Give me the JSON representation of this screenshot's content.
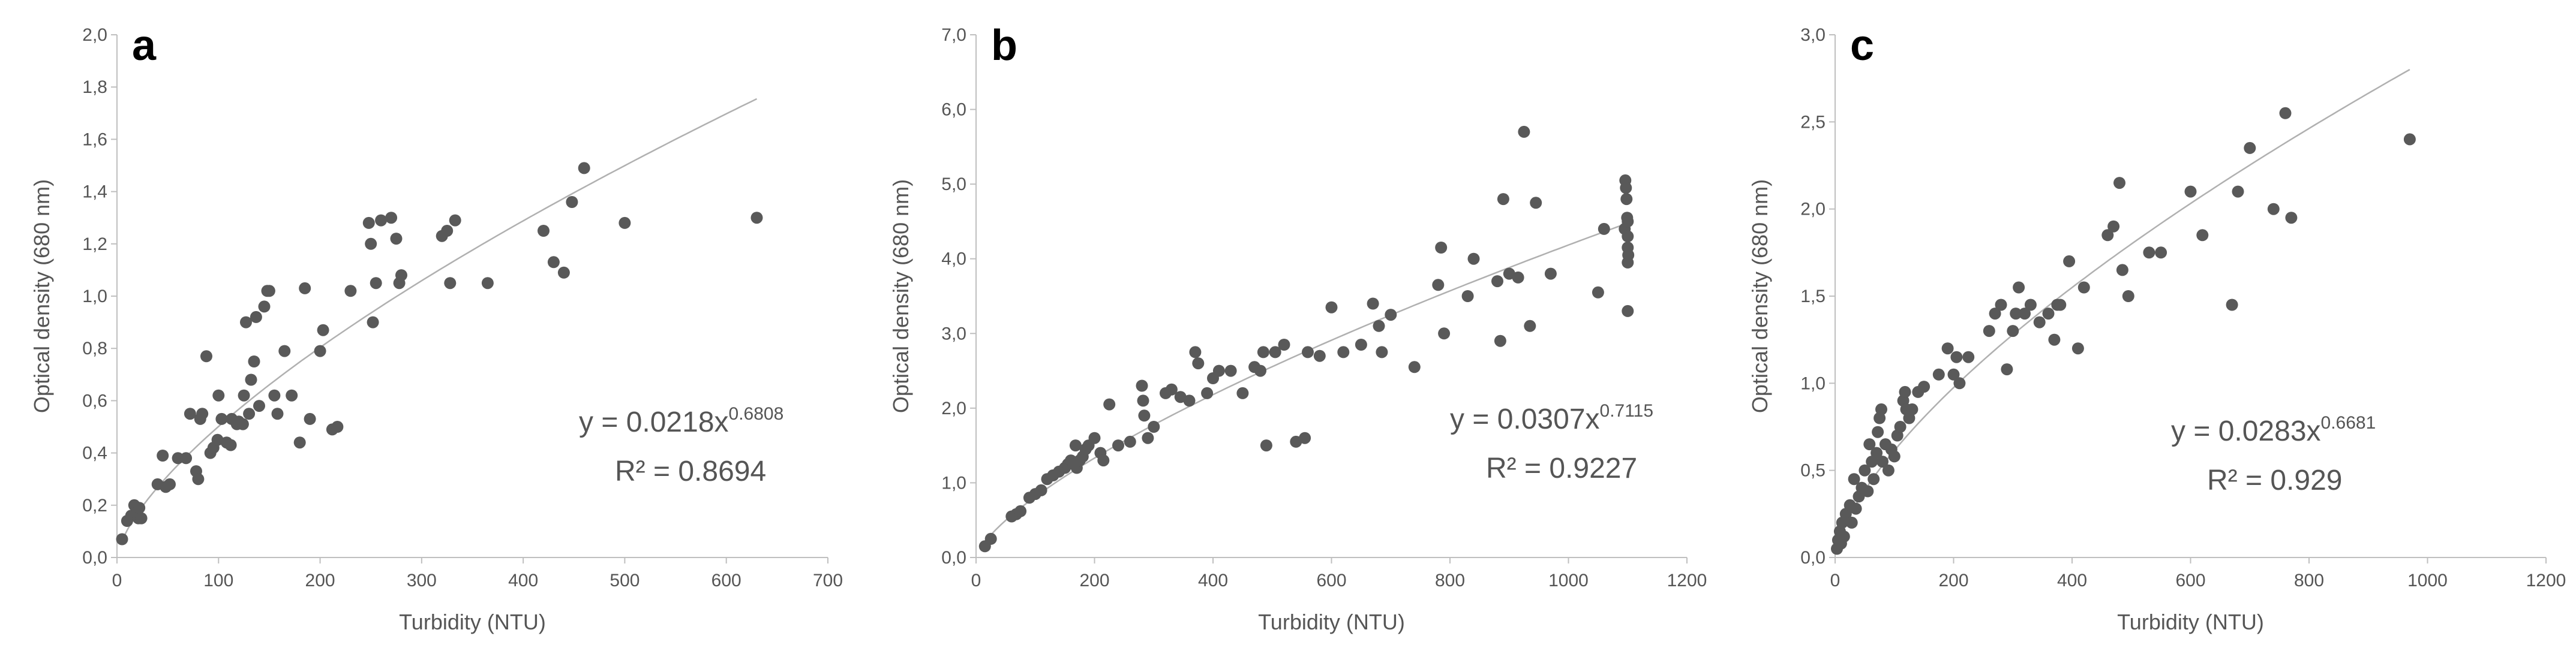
{
  "chart_data": [
    {
      "type": "scatter",
      "panel_label": "a",
      "xlabel": "Turbidity (NTU)",
      "ylabel": "Optical density (680 nm)",
      "xlim": [
        0,
        700
      ],
      "ylim": [
        0,
        2.0
      ],
      "x_ticks": [
        0,
        100,
        200,
        300,
        400,
        500,
        600,
        700
      ],
      "y_ticks": [
        0,
        0.2,
        0.4,
        0.6,
        0.8,
        1.0,
        1.2,
        1.4,
        1.6,
        1.8,
        2.0
      ],
      "x_tick_labels": [
        "0",
        "100",
        "200",
        "300",
        "400",
        "500",
        "600",
        "700"
      ],
      "y_tick_labels": [
        "0,0",
        "0,2",
        "0,4",
        "0,6",
        "0,8",
        "1,0",
        "1,2",
        "1,4",
        "1,6",
        "1,8",
        "2,0"
      ],
      "point_color": "#595959",
      "trend_color": "#b0b0b0",
      "trendline": {
        "type": "power",
        "a": 0.0218,
        "b": 0.6808,
        "x_range": [
          5,
          630
        ]
      },
      "equation": {
        "prefix": "y = 0.0218x",
        "exponent": "0.6808",
        "r2": "R² = 0.8694"
      },
      "points": [
        [
          5,
          0.07
        ],
        [
          10,
          0.14
        ],
        [
          14,
          0.16
        ],
        [
          17,
          0.2
        ],
        [
          19,
          0.17
        ],
        [
          21,
          0.15
        ],
        [
          22,
          0.19
        ],
        [
          24,
          0.15
        ],
        [
          40,
          0.28
        ],
        [
          45,
          0.39
        ],
        [
          48,
          0.27
        ],
        [
          52,
          0.28
        ],
        [
          60,
          0.38
        ],
        [
          68,
          0.38
        ],
        [
          72,
          0.55
        ],
        [
          78,
          0.33
        ],
        [
          80,
          0.3
        ],
        [
          82,
          0.53
        ],
        [
          84,
          0.55
        ],
        [
          88,
          0.77
        ],
        [
          92,
          0.4
        ],
        [
          95,
          0.42
        ],
        [
          99,
          0.45
        ],
        [
          100,
          0.62
        ],
        [
          103,
          0.53
        ],
        [
          108,
          0.44
        ],
        [
          112,
          0.43
        ],
        [
          113,
          0.53
        ],
        [
          118,
          0.51
        ],
        [
          120,
          0.52
        ],
        [
          124,
          0.51
        ],
        [
          125,
          0.62
        ],
        [
          127,
          0.9
        ],
        [
          130,
          0.55
        ],
        [
          132,
          0.68
        ],
        [
          135,
          0.75
        ],
        [
          137,
          0.92
        ],
        [
          140,
          0.58
        ],
        [
          145,
          0.96
        ],
        [
          148,
          1.02
        ],
        [
          150,
          1.02
        ],
        [
          155,
          0.62
        ],
        [
          158,
          0.55
        ],
        [
          165,
          0.79
        ],
        [
          172,
          0.62
        ],
        [
          180,
          0.44
        ],
        [
          185,
          1.03
        ],
        [
          190,
          0.53
        ],
        [
          200,
          0.79
        ],
        [
          203,
          0.87
        ],
        [
          212,
          0.49
        ],
        [
          217,
          0.5
        ],
        [
          230,
          1.02
        ],
        [
          248,
          1.28
        ],
        [
          250,
          1.2
        ],
        [
          252,
          0.9
        ],
        [
          255,
          1.05
        ],
        [
          260,
          1.29
        ],
        [
          270,
          1.3
        ],
        [
          275,
          1.22
        ],
        [
          278,
          1.05
        ],
        [
          280,
          1.08
        ],
        [
          320,
          1.23
        ],
        [
          325,
          1.25
        ],
        [
          328,
          1.05
        ],
        [
          333,
          1.29
        ],
        [
          365,
          1.05
        ],
        [
          420,
          1.25
        ],
        [
          430,
          1.13
        ],
        [
          440,
          1.09
        ],
        [
          448,
          1.36
        ],
        [
          460,
          1.49
        ],
        [
          500,
          1.28
        ],
        [
          630,
          1.3
        ]
      ]
    },
    {
      "type": "scatter",
      "panel_label": "b",
      "xlabel": "Turbidity (NTU)",
      "ylabel": "Optical density (680 nm)",
      "xlim": [
        0,
        1200
      ],
      "ylim": [
        0,
        7.0
      ],
      "x_ticks": [
        0,
        200,
        400,
        600,
        800,
        1000,
        1200
      ],
      "y_ticks": [
        0,
        1.0,
        2.0,
        3.0,
        4.0,
        5.0,
        6.0,
        7.0
      ],
      "x_tick_labels": [
        "0",
        "200",
        "400",
        "600",
        "800",
        "1000",
        "1200"
      ],
      "y_tick_labels": [
        "0,0",
        "1,0",
        "2,0",
        "3,0",
        "4,0",
        "5,0",
        "6,0",
        "7,0"
      ],
      "point_color": "#595959",
      "trend_color": "#b0b0b0",
      "trendline": {
        "type": "power",
        "a": 0.0307,
        "b": 0.7115,
        "x_range": [
          15,
          1100
        ]
      },
      "equation": {
        "prefix": "y = 0.0307x",
        "exponent": "0.7115",
        "r2": "R² = 0.9227"
      },
      "points": [
        [
          15,
          0.15
        ],
        [
          25,
          0.25
        ],
        [
          60,
          0.55
        ],
        [
          68,
          0.58
        ],
        [
          75,
          0.62
        ],
        [
          90,
          0.8
        ],
        [
          100,
          0.85
        ],
        [
          110,
          0.9
        ],
        [
          120,
          1.05
        ],
        [
          130,
          1.1
        ],
        [
          140,
          1.15
        ],
        [
          150,
          1.2
        ],
        [
          155,
          1.25
        ],
        [
          160,
          1.3
        ],
        [
          165,
          1.25
        ],
        [
          168,
          1.5
        ],
        [
          170,
          1.2
        ],
        [
          175,
          1.3
        ],
        [
          180,
          1.35
        ],
        [
          185,
          1.45
        ],
        [
          190,
          1.5
        ],
        [
          200,
          1.6
        ],
        [
          210,
          1.4
        ],
        [
          215,
          1.3
        ],
        [
          225,
          2.05
        ],
        [
          240,
          1.5
        ],
        [
          260,
          1.55
        ],
        [
          280,
          2.3
        ],
        [
          282,
          2.1
        ],
        [
          284,
          1.9
        ],
        [
          290,
          1.6
        ],
        [
          300,
          1.75
        ],
        [
          320,
          2.2
        ],
        [
          330,
          2.25
        ],
        [
          345,
          2.15
        ],
        [
          360,
          2.1
        ],
        [
          370,
          2.75
        ],
        [
          375,
          2.6
        ],
        [
          390,
          2.2
        ],
        [
          400,
          2.4
        ],
        [
          410,
          2.5
        ],
        [
          430,
          2.5
        ],
        [
          450,
          2.2
        ],
        [
          470,
          2.55
        ],
        [
          480,
          2.5
        ],
        [
          485,
          2.75
        ],
        [
          490,
          1.5
        ],
        [
          505,
          2.75
        ],
        [
          520,
          2.85
        ],
        [
          540,
          1.55
        ],
        [
          555,
          1.6
        ],
        [
          560,
          2.75
        ],
        [
          580,
          2.7
        ],
        [
          600,
          3.35
        ],
        [
          620,
          2.75
        ],
        [
          650,
          2.85
        ],
        [
          670,
          3.4
        ],
        [
          680,
          3.1
        ],
        [
          685,
          2.75
        ],
        [
          700,
          3.25
        ],
        [
          740,
          2.55
        ],
        [
          780,
          3.65
        ],
        [
          785,
          4.15
        ],
        [
          790,
          3.0
        ],
        [
          830,
          3.5
        ],
        [
          840,
          4.0
        ],
        [
          880,
          3.7
        ],
        [
          885,
          2.9
        ],
        [
          890,
          4.8
        ],
        [
          900,
          3.8
        ],
        [
          915,
          3.75
        ],
        [
          925,
          5.7
        ],
        [
          935,
          3.1
        ],
        [
          945,
          4.75
        ],
        [
          970,
          3.8
        ],
        [
          1050,
          3.55
        ],
        [
          1060,
          4.4
        ],
        [
          1095,
          4.4
        ],
        [
          1096,
          5.05
        ],
        [
          1097,
          4.95
        ],
        [
          1098,
          4.8
        ],
        [
          1099,
          4.55
        ],
        [
          1100,
          4.5
        ],
        [
          1100,
          4.3
        ],
        [
          1100,
          4.15
        ],
        [
          1100,
          3.95
        ],
        [
          1100,
          3.3
        ],
        [
          1101,
          4.05
        ]
      ]
    },
    {
      "type": "scatter",
      "panel_label": "c",
      "xlabel": "Turbidity (NTU)",
      "ylabel": "Optical density (680 nm)",
      "xlim": [
        0,
        1200
      ],
      "ylim": [
        0,
        3.0
      ],
      "x_ticks": [
        0,
        200,
        400,
        600,
        800,
        1000,
        1200
      ],
      "y_ticks": [
        0,
        0.5,
        1.0,
        1.5,
        2.0,
        2.5,
        3.0
      ],
      "x_tick_labels": [
        "0",
        "200",
        "400",
        "600",
        "800",
        "1000",
        "1200"
      ],
      "y_tick_labels": [
        "0,0",
        "0,5",
        "1,0",
        "1,5",
        "2,0",
        "2,5",
        "3,0"
      ],
      "point_color": "#595959",
      "trend_color": "#b0b0b0",
      "trendline": {
        "type": "power",
        "a": 0.0283,
        "b": 0.6681,
        "x_range": [
          3,
          970
        ]
      },
      "equation": {
        "prefix": "y = 0.0283x",
        "exponent": "0.6681",
        "r2": "R² = 0.929"
      },
      "points": [
        [
          3,
          0.05
        ],
        [
          5,
          0.1
        ],
        [
          8,
          0.15
        ],
        [
          10,
          0.08
        ],
        [
          12,
          0.2
        ],
        [
          15,
          0.12
        ],
        [
          18,
          0.25
        ],
        [
          25,
          0.3
        ],
        [
          28,
          0.2
        ],
        [
          32,
          0.45
        ],
        [
          35,
          0.28
        ],
        [
          40,
          0.35
        ],
        [
          45,
          0.4
        ],
        [
          50,
          0.5
        ],
        [
          55,
          0.38
        ],
        [
          58,
          0.65
        ],
        [
          62,
          0.55
        ],
        [
          65,
          0.45
        ],
        [
          70,
          0.6
        ],
        [
          72,
          0.72
        ],
        [
          75,
          0.8
        ],
        [
          78,
          0.85
        ],
        [
          80,
          0.55
        ],
        [
          85,
          0.65
        ],
        [
          90,
          0.5
        ],
        [
          95,
          0.62
        ],
        [
          100,
          0.58
        ],
        [
          105,
          0.7
        ],
        [
          110,
          0.75
        ],
        [
          115,
          0.9
        ],
        [
          118,
          0.95
        ],
        [
          120,
          0.85
        ],
        [
          125,
          0.8
        ],
        [
          130,
          0.85
        ],
        [
          140,
          0.95
        ],
        [
          150,
          0.98
        ],
        [
          175,
          1.05
        ],
        [
          190,
          1.2
        ],
        [
          200,
          1.05
        ],
        [
          205,
          1.15
        ],
        [
          210,
          1.0
        ],
        [
          225,
          1.15
        ],
        [
          260,
          1.3
        ],
        [
          270,
          1.4
        ],
        [
          280,
          1.45
        ],
        [
          290,
          1.08
        ],
        [
          300,
          1.3
        ],
        [
          305,
          1.4
        ],
        [
          310,
          1.55
        ],
        [
          320,
          1.4
        ],
        [
          330,
          1.45
        ],
        [
          345,
          1.35
        ],
        [
          360,
          1.4
        ],
        [
          370,
          1.25
        ],
        [
          375,
          1.45
        ],
        [
          380,
          1.45
        ],
        [
          395,
          1.7
        ],
        [
          410,
          1.2
        ],
        [
          420,
          1.55
        ],
        [
          460,
          1.85
        ],
        [
          470,
          1.9
        ],
        [
          480,
          2.15
        ],
        [
          485,
          1.65
        ],
        [
          495,
          1.5
        ],
        [
          530,
          1.75
        ],
        [
          550,
          1.75
        ],
        [
          600,
          2.1
        ],
        [
          620,
          1.85
        ],
        [
          670,
          1.45
        ],
        [
          680,
          2.1
        ],
        [
          700,
          2.35
        ],
        [
          740,
          2.0
        ],
        [
          760,
          2.55
        ],
        [
          770,
          1.95
        ],
        [
          970,
          2.4
        ]
      ]
    }
  ]
}
